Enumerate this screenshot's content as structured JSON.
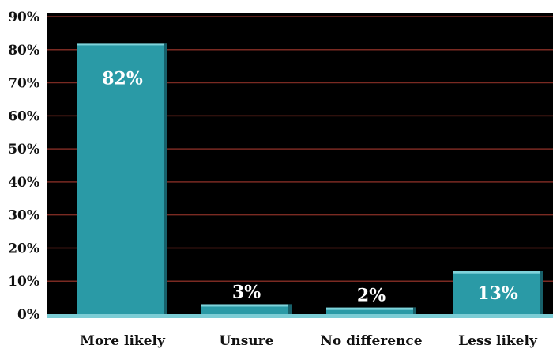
{
  "chart_data": {
    "type": "bar",
    "categories": [
      "More likely",
      "Unsure",
      "No difference",
      "Less likely"
    ],
    "values": [
      82,
      3,
      2,
      13
    ],
    "data_labels": [
      "82%",
      "3%",
      "2%",
      "13%"
    ],
    "y_ticks": [
      "0%",
      "10%",
      "20%",
      "30%",
      "40%",
      "50%",
      "60%",
      "70%",
      "80%",
      "90%"
    ],
    "ylim": [
      0,
      90
    ],
    "grid": true,
    "title": "",
    "xlabel": "",
    "ylabel": ""
  },
  "colors": {
    "plot_background": "#000000",
    "gridline": "#7a2a22",
    "bar": "#2a9aa6",
    "bar_highlight": "#7fd3da",
    "bar_shadow": "#17606a",
    "floor": "#7ccdd5",
    "label_on_bar": "#ffffff",
    "label_dark": "#111111"
  }
}
